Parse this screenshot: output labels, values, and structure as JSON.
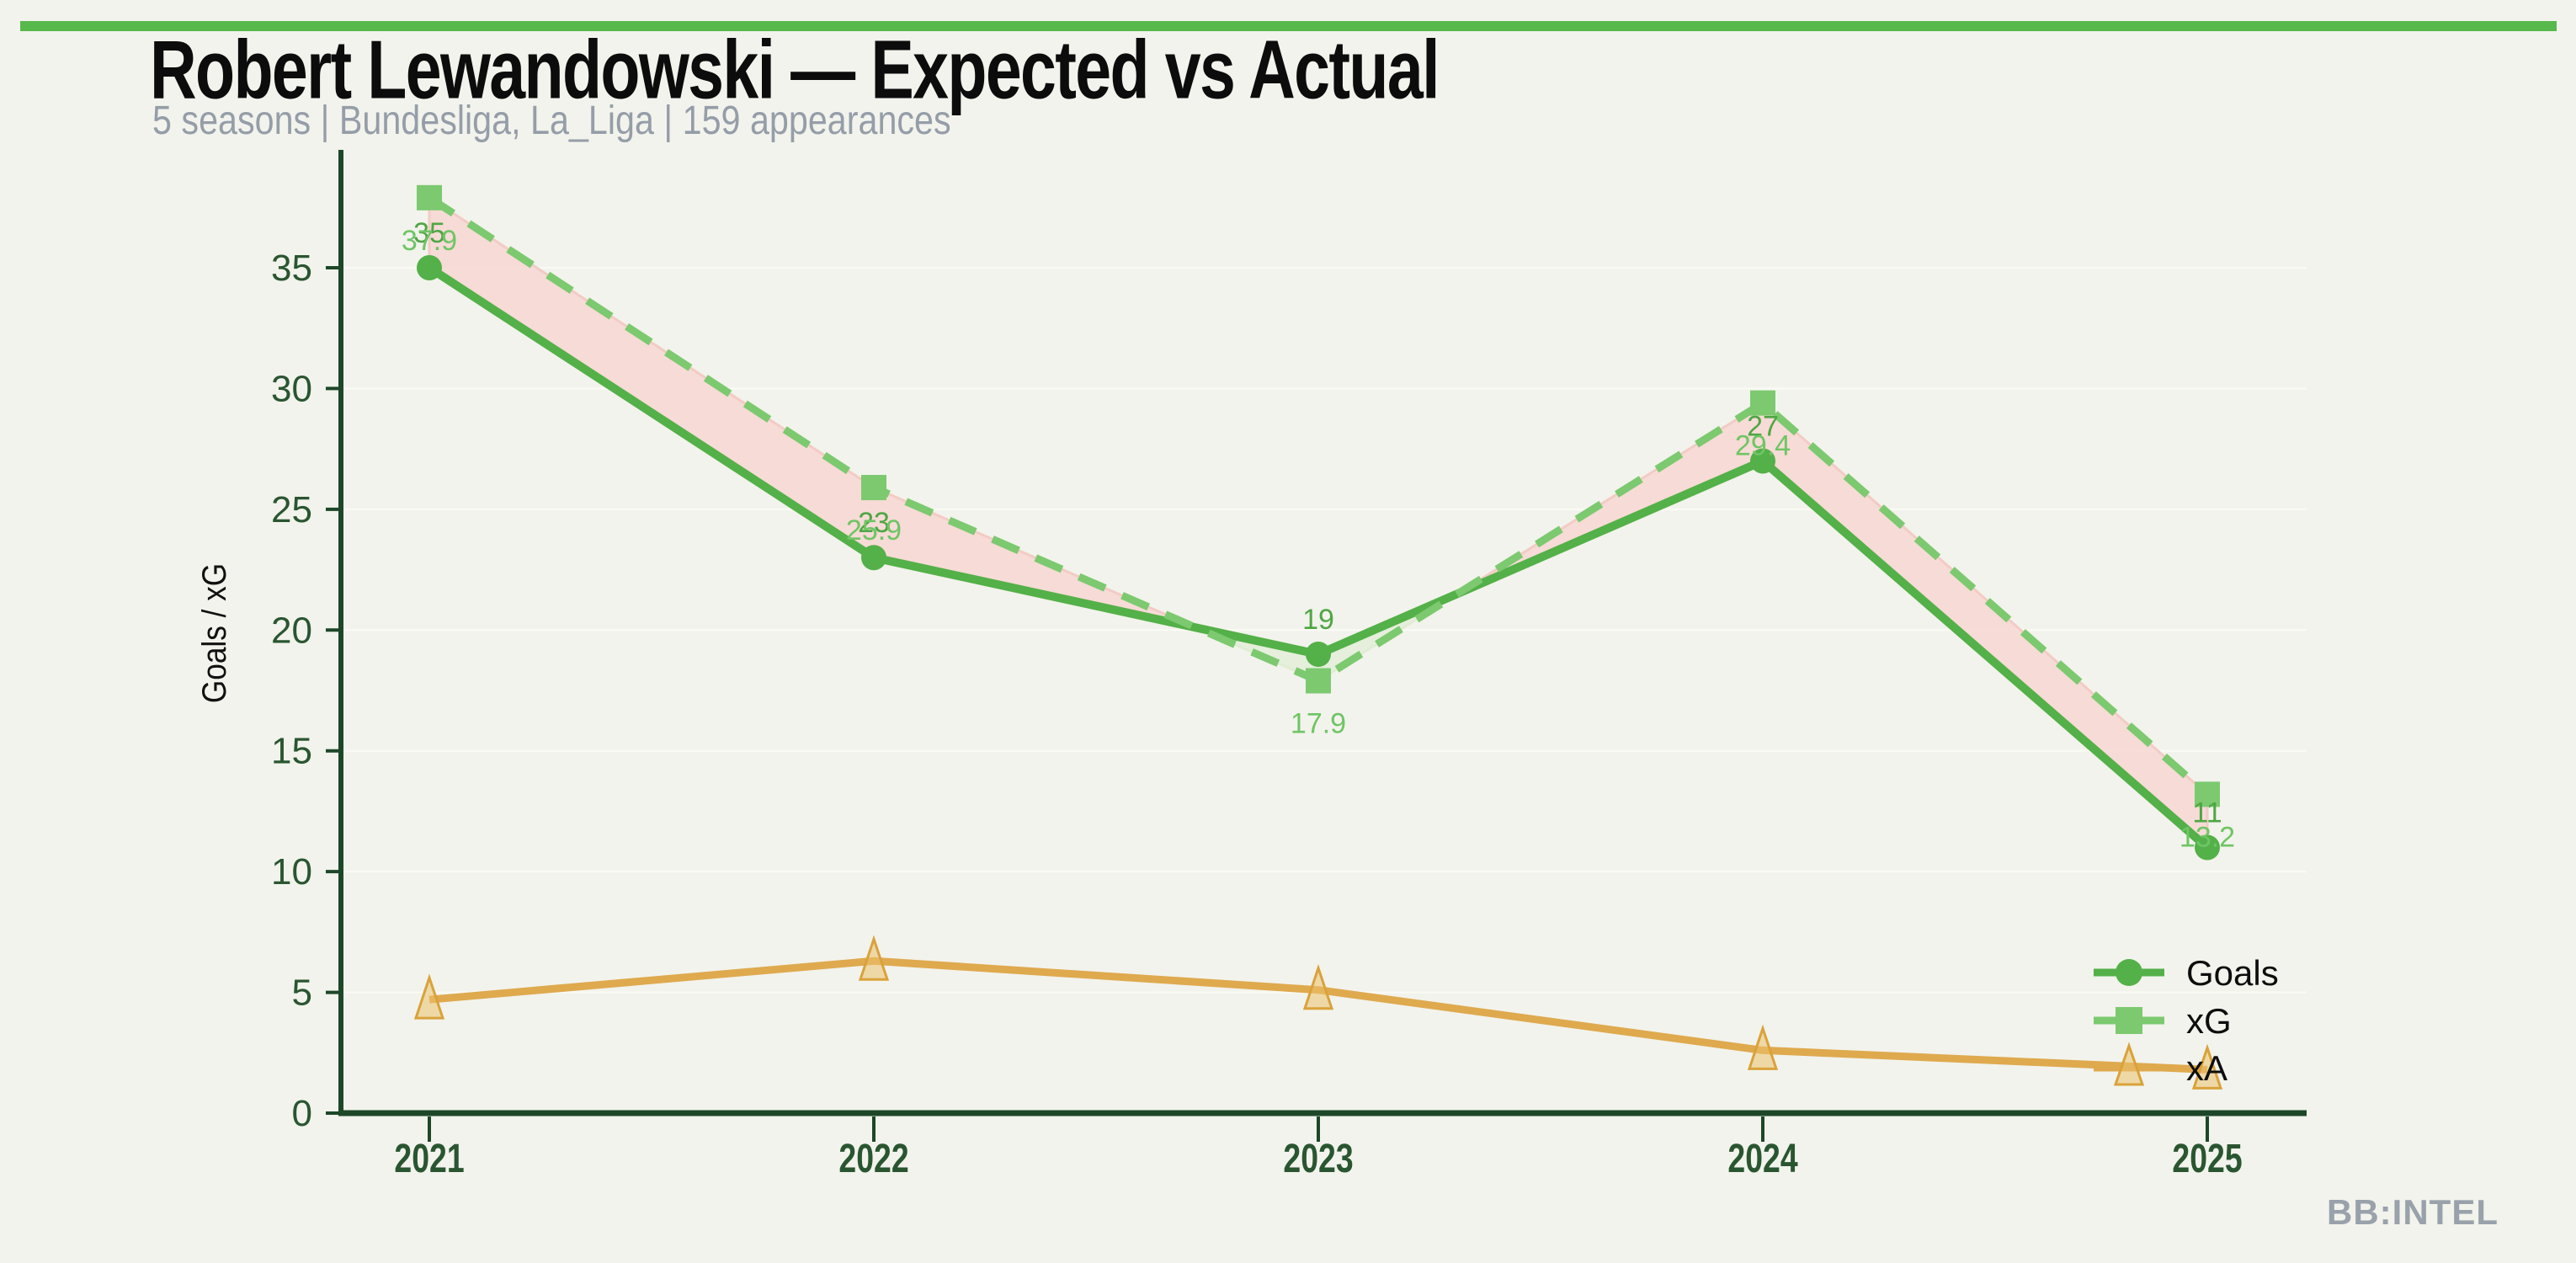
{
  "page": {
    "title": "Robert Lewandowski — Expected vs Actual",
    "subtitle": "5 seasons | Bundesliga, La_Liga | 159 appearances",
    "watermark": "BB:INTEL",
    "accent_bar_color": "#57b84c",
    "background_color": "#f2f3ec"
  },
  "chart_data": {
    "type": "line",
    "title": "Robert Lewandowski — Expected vs Actual",
    "x": [
      "2021",
      "2022",
      "2023",
      "2024",
      "2025"
    ],
    "ylabel": "Goals / xG",
    "yticks": [
      0,
      5,
      10,
      15,
      20,
      25,
      30,
      35
    ],
    "ylim": [
      0,
      39.6
    ],
    "grid": true,
    "legend_position": "lower right",
    "series": [
      {
        "name": "Goals",
        "marker": "circle",
        "line_style": "solid",
        "color": "#54b048",
        "label_color": "#4fa644",
        "values": [
          35,
          23,
          19,
          27,
          11
        ],
        "point_labels": [
          "35",
          "23",
          "19",
          "27",
          "11"
        ],
        "label_side": "above"
      },
      {
        "name": "xG",
        "marker": "square",
        "line_style": "dashed",
        "color": "#7cc970",
        "label_color": "#6fc565",
        "values": [
          37.9,
          25.9,
          17.9,
          29.4,
          13.2
        ],
        "point_labels": [
          "37.9",
          "25.9",
          "17.9",
          "29.4",
          "13.2"
        ],
        "label_side": "below"
      },
      {
        "name": "xA",
        "marker": "triangle",
        "line_style": "solid",
        "color": "#dfa94e",
        "marker_fill": "rgba(235,193,110,0.55)",
        "marker_edge": "#d9a23a",
        "values": [
          4.7,
          6.3,
          5.1,
          2.6,
          1.8
        ],
        "point_labels": [],
        "label_side": "none"
      }
    ],
    "difference_band": {
      "between": [
        "xG",
        "Goals"
      ],
      "xg_above_fill": "rgba(246,215,211,0.88)",
      "xg_above_edge": "#f3cbc5",
      "goals_above_fill": "rgba(227,238,217,0.90)",
      "goals_above_edge": "#e0edd4"
    },
    "axis_color": "#1d4728",
    "tick_label_color": "#2a5531",
    "grid_color": "#f9faf3"
  }
}
